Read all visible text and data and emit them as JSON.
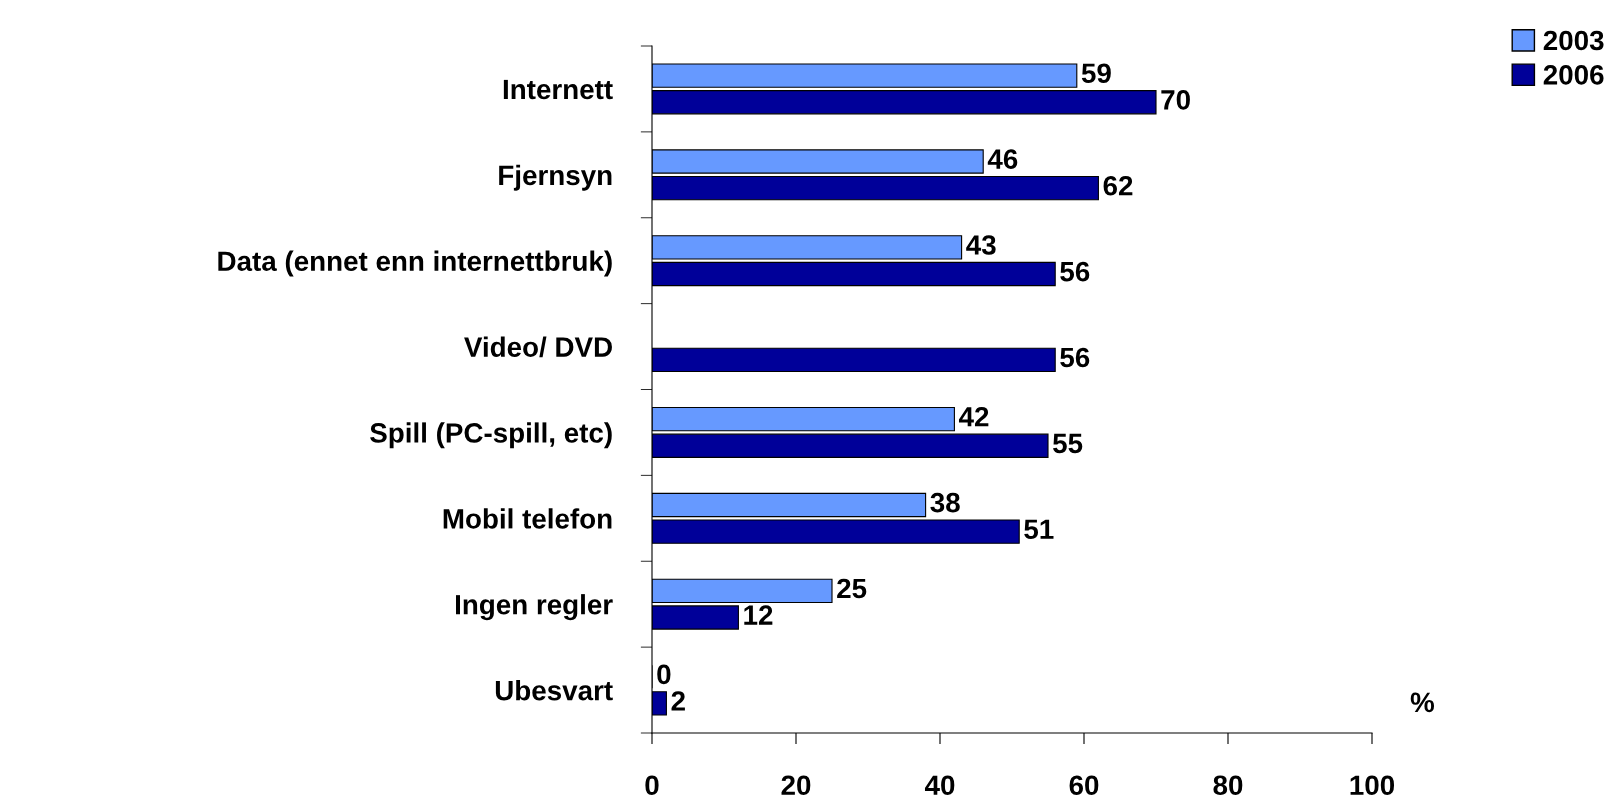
{
  "chart_data": {
    "type": "bar",
    "orientation": "horizontal",
    "xlabel": "%",
    "categories": [
      "Internett",
      "Fjernsyn",
      "Data (ennet enn internettbruk)",
      "Video/ DVD",
      "Spill (PC-spill, etc)",
      "Mobil telefon",
      "Ingen regler",
      "Ubesvart"
    ],
    "series": [
      {
        "name": "2003",
        "color": "#6699ff",
        "values": [
          59,
          46,
          43,
          null,
          42,
          38,
          25,
          0
        ]
      },
      {
        "name": "2006",
        "color": "#000099",
        "values": [
          70,
          62,
          56,
          56,
          55,
          51,
          12,
          2
        ]
      }
    ],
    "xlim": [
      0,
      100
    ],
    "xticks": [
      0,
      20,
      40,
      60,
      80,
      100
    ],
    "data_labels": true,
    "grid": false,
    "legend": "top right"
  }
}
